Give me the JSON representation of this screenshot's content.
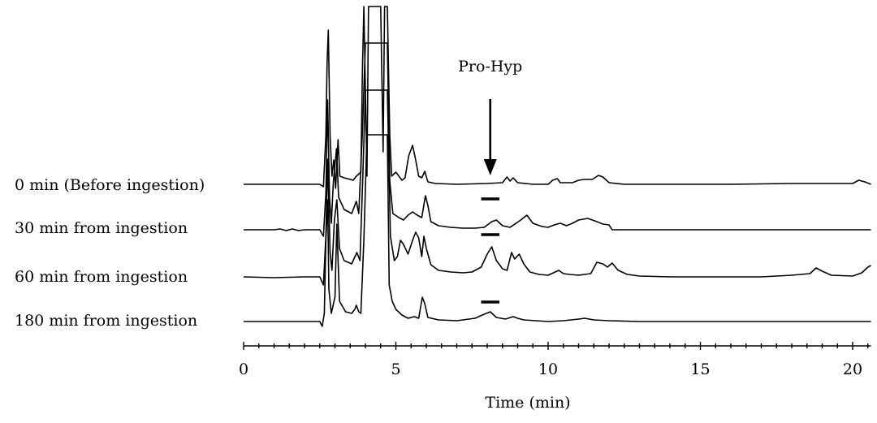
{
  "chart_data": {
    "type": "line",
    "xlabel": "Time (min)",
    "xlim": [
      0,
      20.6
    ],
    "x_ticks": [
      0,
      5,
      10,
      15,
      20
    ],
    "annotation": {
      "text": "Pro-Hyp",
      "x": 8.1
    },
    "series": [
      {
        "name": "0 min (Before ingestion)",
        "bar": null,
        "points": [
          [
            0,
            0
          ],
          [
            2.5,
            0
          ],
          [
            2.62,
            -3
          ],
          [
            2.7,
            60
          ],
          [
            2.74,
            150
          ],
          [
            2.78,
            190
          ],
          [
            2.84,
            60
          ],
          [
            2.9,
            10
          ],
          [
            2.96,
            30
          ],
          [
            3.02,
            -5
          ],
          [
            3.1,
            55
          ],
          [
            3.16,
            10
          ],
          [
            3.3,
            8
          ],
          [
            3.6,
            5
          ],
          [
            3.7,
            10
          ],
          [
            3.85,
            15
          ],
          [
            3.9,
            140
          ],
          [
            3.95,
            230
          ],
          [
            4.05,
            10
          ],
          [
            4.1,
            220
          ],
          [
            4.2,
            230
          ],
          [
            4.35,
            230
          ],
          [
            4.5,
            230
          ],
          [
            4.58,
            40
          ],
          [
            4.63,
            230
          ],
          [
            4.72,
            230
          ],
          [
            4.8,
            60
          ],
          [
            4.86,
            10
          ],
          [
            5.0,
            15
          ],
          [
            5.2,
            5
          ],
          [
            5.3,
            8
          ],
          [
            5.42,
            35
          ],
          [
            5.55,
            48
          ],
          [
            5.65,
            30
          ],
          [
            5.75,
            10
          ],
          [
            5.85,
            8
          ],
          [
            5.95,
            16
          ],
          [
            6.05,
            3
          ],
          [
            6.3,
            1
          ],
          [
            7.0,
            0
          ],
          [
            8.0,
            1
          ],
          [
            8.5,
            2
          ],
          [
            8.65,
            9
          ],
          [
            8.75,
            4
          ],
          [
            8.85,
            8
          ],
          [
            9.0,
            2
          ],
          [
            9.5,
            0
          ],
          [
            10.0,
            0
          ],
          [
            10.15,
            5
          ],
          [
            10.3,
            7
          ],
          [
            10.4,
            2
          ],
          [
            10.8,
            2
          ],
          [
            11.0,
            5
          ],
          [
            11.2,
            6
          ],
          [
            11.45,
            6
          ],
          [
            11.65,
            11
          ],
          [
            11.8,
            9
          ],
          [
            12.0,
            2
          ],
          [
            12.5,
            0
          ],
          [
            14.0,
            0
          ],
          [
            16.0,
            0
          ],
          [
            18.0,
            1
          ],
          [
            19.0,
            1
          ],
          [
            20.0,
            1
          ],
          [
            20.2,
            5
          ],
          [
            20.4,
            3
          ],
          [
            20.6,
            0
          ]
        ]
      },
      {
        "name": "30 min from ingestion",
        "bar": [
          7.8,
          8.4
        ],
        "points": [
          [
            0,
            0
          ],
          [
            1.0,
            0
          ],
          [
            1.2,
            1
          ],
          [
            1.4,
            -1
          ],
          [
            1.6,
            1
          ],
          [
            1.8,
            -1
          ],
          [
            2.0,
            0
          ],
          [
            2.5,
            0
          ],
          [
            2.62,
            -8
          ],
          [
            2.7,
            45
          ],
          [
            2.76,
            160
          ],
          [
            2.82,
            40
          ],
          [
            2.88,
            8
          ],
          [
            2.95,
            60
          ],
          [
            3.05,
            100
          ],
          [
            3.12,
            40
          ],
          [
            3.3,
            25
          ],
          [
            3.55,
            20
          ],
          [
            3.7,
            35
          ],
          [
            3.78,
            20
          ],
          [
            3.9,
            120
          ],
          [
            4.0,
            230
          ],
          [
            4.2,
            230
          ],
          [
            4.4,
            230
          ],
          [
            4.55,
            230
          ],
          [
            4.72,
            230
          ],
          [
            4.8,
            60
          ],
          [
            4.9,
            20
          ],
          [
            5.1,
            15
          ],
          [
            5.25,
            12
          ],
          [
            5.4,
            18
          ],
          [
            5.55,
            22
          ],
          [
            5.7,
            18
          ],
          [
            5.85,
            15
          ],
          [
            5.97,
            42
          ],
          [
            6.05,
            30
          ],
          [
            6.15,
            10
          ],
          [
            6.4,
            5
          ],
          [
            6.8,
            3
          ],
          [
            7.2,
            2
          ],
          [
            7.6,
            2
          ],
          [
            7.9,
            3
          ],
          [
            8.15,
            10
          ],
          [
            8.3,
            12
          ],
          [
            8.5,
            5
          ],
          [
            8.75,
            3
          ],
          [
            9.1,
            12
          ],
          [
            9.3,
            18
          ],
          [
            9.5,
            8
          ],
          [
            9.8,
            4
          ],
          [
            10.0,
            3
          ],
          [
            10.2,
            6
          ],
          [
            10.4,
            8
          ],
          [
            10.6,
            5
          ],
          [
            10.8,
            8
          ],
          [
            11.0,
            12
          ],
          [
            11.3,
            14
          ],
          [
            11.6,
            10
          ],
          [
            11.8,
            7
          ],
          [
            12.0,
            6
          ],
          [
            12.1,
            0
          ],
          [
            13.0,
            0
          ],
          [
            14.0,
            0
          ],
          [
            15.0,
            0
          ],
          [
            16.0,
            0
          ],
          [
            17.0,
            0
          ],
          [
            18.0,
            0
          ],
          [
            19.0,
            0
          ],
          [
            20.0,
            0
          ],
          [
            20.6,
            0
          ]
        ]
      },
      {
        "name": "60 min from ingestion",
        "bar": [
          7.8,
          8.4
        ],
        "points": [
          [
            0,
            0
          ],
          [
            1.0,
            -1
          ],
          [
            2.0,
            0
          ],
          [
            2.5,
            0
          ],
          [
            2.62,
            -10
          ],
          [
            2.7,
            50
          ],
          [
            2.76,
            145
          ],
          [
            2.84,
            30
          ],
          [
            2.9,
            8
          ],
          [
            2.98,
            70
          ],
          [
            3.06,
            95
          ],
          [
            3.15,
            35
          ],
          [
            3.3,
            20
          ],
          [
            3.55,
            16
          ],
          [
            3.72,
            30
          ],
          [
            3.82,
            20
          ],
          [
            3.92,
            130
          ],
          [
            4.0,
            230
          ],
          [
            4.2,
            230
          ],
          [
            4.4,
            230
          ],
          [
            4.6,
            230
          ],
          [
            4.72,
            230
          ],
          [
            4.82,
            50
          ],
          [
            4.95,
            20
          ],
          [
            5.05,
            25
          ],
          [
            5.15,
            45
          ],
          [
            5.25,
            40
          ],
          [
            5.4,
            28
          ],
          [
            5.55,
            45
          ],
          [
            5.65,
            55
          ],
          [
            5.75,
            48
          ],
          [
            5.85,
            25
          ],
          [
            5.92,
            50
          ],
          [
            6.0,
            35
          ],
          [
            6.15,
            15
          ],
          [
            6.4,
            8
          ],
          [
            6.8,
            6
          ],
          [
            7.2,
            5
          ],
          [
            7.5,
            6
          ],
          [
            7.8,
            12
          ],
          [
            8.0,
            28
          ],
          [
            8.15,
            37
          ],
          [
            8.3,
            20
          ],
          [
            8.5,
            10
          ],
          [
            8.65,
            8
          ],
          [
            8.8,
            30
          ],
          [
            8.9,
            22
          ],
          [
            9.05,
            28
          ],
          [
            9.2,
            16
          ],
          [
            9.4,
            6
          ],
          [
            9.7,
            3
          ],
          [
            10.0,
            2
          ],
          [
            10.35,
            8
          ],
          [
            10.5,
            4
          ],
          [
            10.7,
            3
          ],
          [
            11.0,
            2
          ],
          [
            11.4,
            4
          ],
          [
            11.6,
            18
          ],
          [
            11.8,
            16
          ],
          [
            11.95,
            12
          ],
          [
            12.1,
            17
          ],
          [
            12.3,
            8
          ],
          [
            12.6,
            3
          ],
          [
            13.0,
            1
          ],
          [
            14.0,
            0
          ],
          [
            15.0,
            0
          ],
          [
            16.0,
            0
          ],
          [
            17.0,
            0
          ],
          [
            18.0,
            2
          ],
          [
            18.6,
            4
          ],
          [
            18.8,
            11
          ],
          [
            19.0,
            7
          ],
          [
            19.3,
            2
          ],
          [
            20.0,
            1
          ],
          [
            20.3,
            5
          ],
          [
            20.5,
            12
          ],
          [
            20.6,
            14
          ]
        ]
      },
      {
        "name": "180 min from ingestion",
        "bar": [
          7.8,
          8.4
        ],
        "points": [
          [
            0,
            0
          ],
          [
            1.0,
            0
          ],
          [
            2.0,
            0
          ],
          [
            2.5,
            0
          ],
          [
            2.58,
            -6
          ],
          [
            2.65,
            10
          ],
          [
            2.7,
            100
          ],
          [
            2.76,
            150
          ],
          [
            2.8,
            40
          ],
          [
            2.88,
            10
          ],
          [
            3.0,
            30
          ],
          [
            3.06,
            120
          ],
          [
            3.15,
            25
          ],
          [
            3.35,
            12
          ],
          [
            3.55,
            10
          ],
          [
            3.65,
            15
          ],
          [
            3.7,
            20
          ],
          [
            3.78,
            12
          ],
          [
            3.85,
            10
          ],
          [
            3.95,
            100
          ],
          [
            4.05,
            230
          ],
          [
            4.2,
            230
          ],
          [
            4.4,
            230
          ],
          [
            4.6,
            230
          ],
          [
            4.72,
            230
          ],
          [
            4.78,
            45
          ],
          [
            4.88,
            25
          ],
          [
            5.0,
            15
          ],
          [
            5.2,
            8
          ],
          [
            5.4,
            4
          ],
          [
            5.6,
            6
          ],
          [
            5.75,
            4
          ],
          [
            5.87,
            30
          ],
          [
            5.95,
            22
          ],
          [
            6.05,
            5
          ],
          [
            6.4,
            2
          ],
          [
            7.0,
            1
          ],
          [
            7.6,
            4
          ],
          [
            7.9,
            9
          ],
          [
            8.1,
            12
          ],
          [
            8.3,
            5
          ],
          [
            8.6,
            3
          ],
          [
            8.85,
            6
          ],
          [
            9.0,
            4
          ],
          [
            9.2,
            2
          ],
          [
            9.6,
            1
          ],
          [
            10.0,
            0
          ],
          [
            10.5,
            1
          ],
          [
            11.0,
            3
          ],
          [
            11.2,
            4
          ],
          [
            11.5,
            2
          ],
          [
            12.0,
            1
          ],
          [
            13.0,
            0
          ],
          [
            15.0,
            0
          ],
          [
            16.5,
            0
          ],
          [
            17.0,
            0
          ],
          [
            18.0,
            0
          ],
          [
            19.0,
            0
          ],
          [
            20.0,
            0
          ],
          [
            20.6,
            0
          ]
        ]
      }
    ]
  }
}
